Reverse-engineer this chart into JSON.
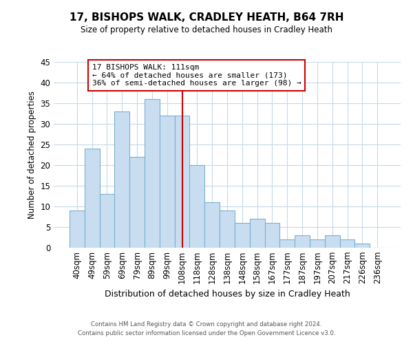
{
  "title": "17, BISHOPS WALK, CRADLEY HEATH, B64 7RH",
  "subtitle": "Size of property relative to detached houses in Cradley Heath",
  "xlabel": "Distribution of detached houses by size in Cradley Heath",
  "ylabel": "Number of detached properties",
  "bar_labels": [
    "40sqm",
    "49sqm",
    "59sqm",
    "69sqm",
    "79sqm",
    "89sqm",
    "99sqm",
    "108sqm",
    "118sqm",
    "128sqm",
    "138sqm",
    "148sqm",
    "158sqm",
    "167sqm",
    "177sqm",
    "187sqm",
    "197sqm",
    "207sqm",
    "217sqm",
    "226sqm",
    "236sqm"
  ],
  "bar_heights": [
    9,
    24,
    13,
    33,
    22,
    36,
    32,
    32,
    20,
    11,
    9,
    6,
    7,
    6,
    2,
    3,
    2,
    3,
    2,
    1,
    0
  ],
  "bar_color": "#c9ddf0",
  "bar_edge_color": "#7aafd4",
  "vline_x": 7,
  "vline_color": "#cc0000",
  "annotation_title": "17 BISHOPS WALK: 111sqm",
  "annotation_line1": "← 64% of detached houses are smaller (173)",
  "annotation_line2": "36% of semi-detached houses are larger (98) →",
  "annotation_box_color": "#ffffff",
  "annotation_box_edge": "#cc0000",
  "ylim": [
    0,
    45
  ],
  "yticks": [
    0,
    5,
    10,
    15,
    20,
    25,
    30,
    35,
    40,
    45
  ],
  "footer1": "Contains HM Land Registry data © Crown copyright and database right 2024.",
  "footer2": "Contains public sector information licensed under the Open Government Licence v3.0.",
  "bg_color": "#ffffff",
  "grid_color": "#c8d8e8"
}
